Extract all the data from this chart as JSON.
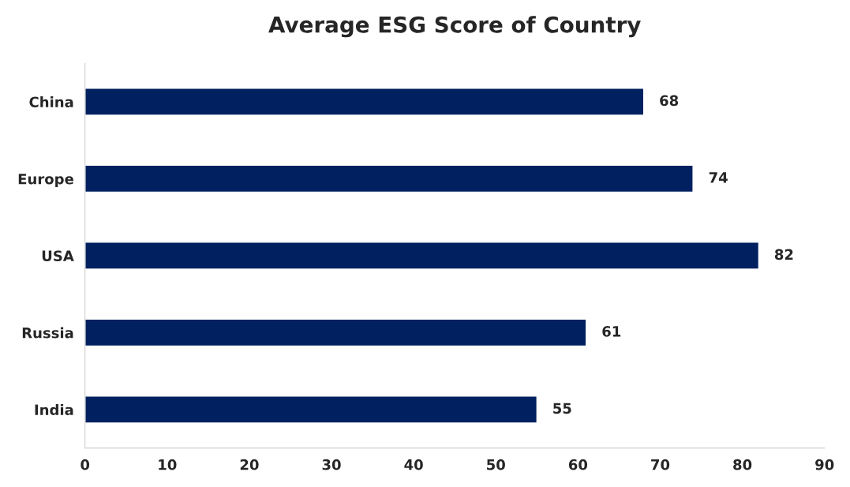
{
  "chart_data": {
    "type": "bar",
    "orientation": "horizontal",
    "title": "Average ESG Score of Country",
    "categories": [
      "China",
      "Europe",
      "USA",
      "Russia",
      "India"
    ],
    "values": [
      68,
      74,
      82,
      61,
      55
    ],
    "color": "#002060",
    "xlim": [
      0,
      90
    ],
    "xticks": [
      0,
      10,
      20,
      30,
      40,
      50,
      60,
      70,
      80,
      90
    ],
    "data_labels": true,
    "grid": false,
    "legend": false
  }
}
